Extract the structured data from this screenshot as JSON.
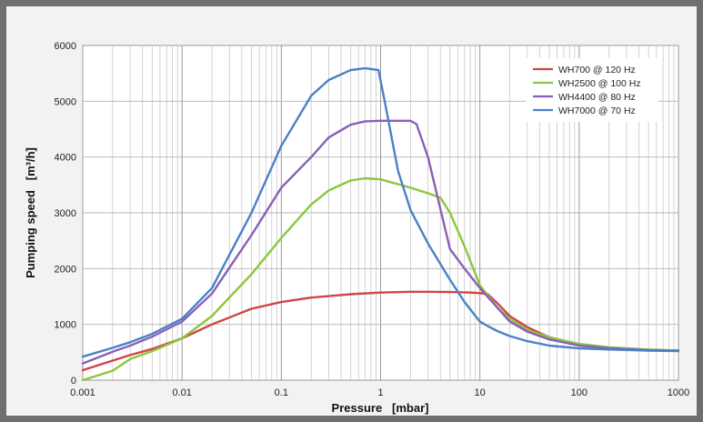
{
  "chart_data": {
    "type": "line",
    "x_scale": "log",
    "xlabel": "Pressure   [mbar]",
    "ylabel": "Pumping speed   [m³/h]",
    "xlim": [
      0.001,
      1000
    ],
    "ylim": [
      0,
      6000
    ],
    "x_ticks": [
      0.001,
      0.01,
      0.1,
      1,
      10,
      100,
      1000
    ],
    "x_tick_labels": [
      "0.001",
      "0.01",
      "0.1",
      "1",
      "10",
      "100",
      "1000"
    ],
    "y_ticks": [
      0,
      1000,
      2000,
      3000,
      4000,
      5000,
      6000
    ],
    "y_tick_labels": [
      "0",
      "1000",
      "2000",
      "3000",
      "4000",
      "5000",
      "6000"
    ],
    "grid": true,
    "legend_position": "top-right",
    "series": [
      {
        "name": "WH700 @ 120 Hz",
        "color": "#d04545",
        "points": [
          [
            0.001,
            180
          ],
          [
            0.002,
            350
          ],
          [
            0.003,
            450
          ],
          [
            0.005,
            560
          ],
          [
            0.01,
            750
          ],
          [
            0.02,
            1000
          ],
          [
            0.05,
            1280
          ],
          [
            0.1,
            1400
          ],
          [
            0.2,
            1480
          ],
          [
            0.5,
            1540
          ],
          [
            1,
            1570
          ],
          [
            2,
            1585
          ],
          [
            3,
            1585
          ],
          [
            5,
            1580
          ],
          [
            8,
            1570
          ],
          [
            10,
            1560
          ],
          [
            12,
            1540
          ],
          [
            15,
            1380
          ],
          [
            20,
            1150
          ],
          [
            30,
            950
          ],
          [
            50,
            770
          ],
          [
            100,
            640
          ],
          [
            200,
            580
          ],
          [
            500,
            540
          ],
          [
            1000,
            530
          ]
        ]
      },
      {
        "name": "WH2500 @ 100 Hz",
        "color": "#8cc63e",
        "points": [
          [
            0.001,
            0
          ],
          [
            0.002,
            170
          ],
          [
            0.003,
            380
          ],
          [
            0.005,
            520
          ],
          [
            0.01,
            750
          ],
          [
            0.02,
            1150
          ],
          [
            0.05,
            1900
          ],
          [
            0.1,
            2550
          ],
          [
            0.2,
            3150
          ],
          [
            0.3,
            3400
          ],
          [
            0.5,
            3580
          ],
          [
            0.7,
            3620
          ],
          [
            1,
            3600
          ],
          [
            2,
            3450
          ],
          [
            3,
            3350
          ],
          [
            4,
            3270
          ],
          [
            5,
            3000
          ],
          [
            7,
            2400
          ],
          [
            10,
            1700
          ],
          [
            15,
            1300
          ],
          [
            20,
            1100
          ],
          [
            30,
            900
          ],
          [
            50,
            770
          ],
          [
            100,
            650
          ],
          [
            200,
            590
          ],
          [
            500,
            550
          ],
          [
            1000,
            530
          ]
        ]
      },
      {
        "name": "WH4400 @ 80 Hz",
        "color": "#8a60b5",
        "points": [
          [
            0.001,
            300
          ],
          [
            0.002,
            510
          ],
          [
            0.003,
            620
          ],
          [
            0.005,
            780
          ],
          [
            0.01,
            1050
          ],
          [
            0.02,
            1550
          ],
          [
            0.05,
            2600
          ],
          [
            0.1,
            3450
          ],
          [
            0.2,
            4000
          ],
          [
            0.3,
            4350
          ],
          [
            0.5,
            4580
          ],
          [
            0.7,
            4640
          ],
          [
            1,
            4650
          ],
          [
            2,
            4650
          ],
          [
            2.3,
            4590
          ],
          [
            3,
            4000
          ],
          [
            5,
            2350
          ],
          [
            7,
            2000
          ],
          [
            10,
            1650
          ],
          [
            15,
            1300
          ],
          [
            20,
            1050
          ],
          [
            30,
            870
          ],
          [
            50,
            730
          ],
          [
            100,
            620
          ],
          [
            200,
            570
          ],
          [
            500,
            540
          ],
          [
            1000,
            530
          ]
        ]
      },
      {
        "name": "WH7000 @ 70 Hz",
        "color": "#4a82c7",
        "points": [
          [
            0.001,
            420
          ],
          [
            0.002,
            580
          ],
          [
            0.003,
            680
          ],
          [
            0.005,
            830
          ],
          [
            0.01,
            1100
          ],
          [
            0.02,
            1650
          ],
          [
            0.05,
            3000
          ],
          [
            0.1,
            4200
          ],
          [
            0.2,
            5100
          ],
          [
            0.3,
            5380
          ],
          [
            0.5,
            5560
          ],
          [
            0.7,
            5590
          ],
          [
            0.95,
            5560
          ],
          [
            1.1,
            5000
          ],
          [
            1.5,
            3750
          ],
          [
            2,
            3050
          ],
          [
            3,
            2450
          ],
          [
            5,
            1800
          ],
          [
            7,
            1400
          ],
          [
            10,
            1050
          ],
          [
            12,
            970
          ],
          [
            15,
            880
          ],
          [
            20,
            790
          ],
          [
            30,
            700
          ],
          [
            50,
            620
          ],
          [
            100,
            570
          ],
          [
            200,
            550
          ],
          [
            500,
            530
          ],
          [
            1000,
            520
          ]
        ]
      }
    ]
  }
}
